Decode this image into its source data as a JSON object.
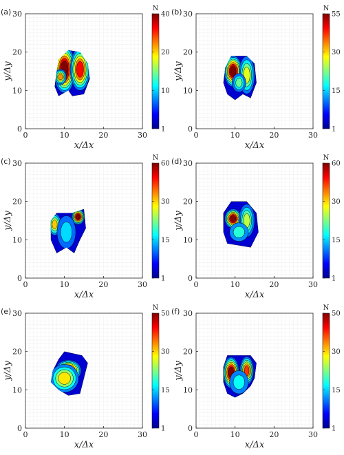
{
  "chart_data": [
    {
      "type": "heatmap",
      "panel_label": "(a)",
      "xlabel": "x/Δx",
      "ylabel": "y/Δy",
      "xlim": [
        0,
        30
      ],
      "ylim": [
        0,
        30
      ],
      "xticks": [
        "0",
        "10",
        "20",
        "30"
      ],
      "yticks": [
        "0",
        "10",
        "20",
        "30"
      ],
      "colorbar": {
        "label": "N",
        "ticks": [
          "1",
          "10",
          "20",
          "40"
        ],
        "tick_values": [
          1,
          10,
          20,
          40
        ],
        "max": 40
      },
      "region": [
        [
          11,
          20.5
        ],
        [
          14,
          20
        ],
        [
          16,
          17
        ],
        [
          16.5,
          13
        ],
        [
          15,
          9
        ],
        [
          12,
          8.5
        ],
        [
          11,
          10
        ],
        [
          8.5,
          8.5
        ],
        [
          7.5,
          11
        ],
        [
          8,
          15
        ],
        [
          8.5,
          18
        ]
      ],
      "peaks": [
        {
          "x": 10,
          "y": 15.5,
          "value": 40,
          "rx": 1.8,
          "ry": 4.5
        },
        {
          "x": 14,
          "y": 15.5,
          "value": 34,
          "rx": 1.6,
          "ry": 4.0
        },
        {
          "x": 9,
          "y": 13.5,
          "value": 28,
          "rx": 0.8,
          "ry": 1.2
        }
      ]
    },
    {
      "type": "heatmap",
      "panel_label": "(b)",
      "xlabel": "x/Δx",
      "ylabel": "y/Δy",
      "xlim": [
        0,
        30
      ],
      "ylim": [
        0,
        30
      ],
      "xticks": [
        "0",
        "10",
        "20",
        "30"
      ],
      "yticks": [
        "0",
        "10",
        "20",
        "30"
      ],
      "colorbar": {
        "label": "N",
        "ticks": [
          "1",
          "15",
          "30",
          "55"
        ],
        "tick_values": [
          1,
          15,
          30,
          55
        ],
        "max": 55
      },
      "region": [
        [
          9,
          19
        ],
        [
          13,
          19
        ],
        [
          15,
          17
        ],
        [
          15.5,
          12
        ],
        [
          14,
          8
        ],
        [
          12,
          9
        ],
        [
          10,
          7.5
        ],
        [
          8,
          9
        ],
        [
          7,
          12
        ],
        [
          7.5,
          16
        ]
      ],
      "peaks": [
        {
          "x": 9.5,
          "y": 15,
          "value": 55,
          "rx": 1.4,
          "ry": 2.8
        },
        {
          "x": 13,
          "y": 14,
          "value": 30,
          "rx": 1.2,
          "ry": 3.5
        },
        {
          "x": 11,
          "y": 12,
          "value": 22,
          "rx": 1.0,
          "ry": 1.5
        }
      ]
    },
    {
      "type": "heatmap",
      "panel_label": "(c)",
      "xlabel": "x/Δx",
      "ylabel": "y/Δy",
      "xlim": [
        0,
        30
      ],
      "ylim": [
        0,
        30
      ],
      "xticks": [
        "0",
        "10",
        "20",
        "30"
      ],
      "yticks": [
        "0",
        "10",
        "20",
        "30"
      ],
      "colorbar": {
        "label": "N",
        "ticks": [
          "1",
          "15",
          "30",
          "60"
        ],
        "tick_values": [
          1,
          15,
          30,
          60
        ],
        "max": 60
      },
      "region": [
        [
          8,
          17
        ],
        [
          12,
          17
        ],
        [
          15,
          18
        ],
        [
          15.5,
          13
        ],
        [
          14,
          10
        ],
        [
          12.5,
          6.5
        ],
        [
          10.5,
          8
        ],
        [
          8,
          6.5
        ],
        [
          6.5,
          10
        ],
        [
          6.5,
          15
        ]
      ],
      "peaks": [
        {
          "x": 7.5,
          "y": 14,
          "value": 38,
          "rx": 0.9,
          "ry": 1.8
        },
        {
          "x": 13.5,
          "y": 16,
          "value": 60,
          "rx": 0.9,
          "ry": 1.2
        },
        {
          "x": 10.5,
          "y": 12,
          "value": 15,
          "rx": 1.5,
          "ry": 3.0
        }
      ]
    },
    {
      "type": "heatmap",
      "panel_label": "(d)",
      "xlabel": "x/Δx",
      "ylabel": "y/Δy",
      "xlim": [
        0,
        30
      ],
      "ylim": [
        0,
        30
      ],
      "xticks": [
        "0",
        "10",
        "20",
        "30"
      ],
      "yticks": [
        "0",
        "10",
        "20",
        "30"
      ],
      "colorbar": {
        "label": "N",
        "ticks": [
          "1",
          "15",
          "30",
          "60"
        ],
        "tick_values": [
          1,
          15,
          30,
          60
        ],
        "max": 60
      },
      "region": [
        [
          9,
          20
        ],
        [
          13,
          20
        ],
        [
          15.5,
          17
        ],
        [
          16,
          12
        ],
        [
          14,
          8
        ],
        [
          11,
          8.5
        ],
        [
          8,
          9
        ],
        [
          7,
          12
        ],
        [
          7,
          17
        ]
      ],
      "peaks": [
        {
          "x": 9.5,
          "y": 15.5,
          "value": 60,
          "rx": 1.3,
          "ry": 1.6
        },
        {
          "x": 13,
          "y": 15,
          "value": 30,
          "rx": 1.2,
          "ry": 3.0
        },
        {
          "x": 11,
          "y": 12,
          "value": 20,
          "rx": 1.5,
          "ry": 1.5
        }
      ]
    },
    {
      "type": "heatmap",
      "panel_label": "(e)",
      "xlabel": "x/Δx",
      "ylabel": "y/Δy",
      "xlim": [
        0,
        30
      ],
      "ylim": [
        0,
        30
      ],
      "xticks": [
        "0",
        "10",
        "20",
        "30"
      ],
      "yticks": [
        "0",
        "10",
        "20",
        "30"
      ],
      "colorbar": {
        "label": "N",
        "ticks": [
          "1",
          "15",
          "30",
          "50"
        ],
        "tick_values": [
          1,
          15,
          30,
          50
        ],
        "max": 50
      },
      "region": [
        [
          10,
          20
        ],
        [
          14.5,
          19
        ],
        [
          16,
          17
        ],
        [
          15,
          13
        ],
        [
          14,
          9
        ],
        [
          11,
          8.5
        ],
        [
          8.5,
          10
        ],
        [
          6.5,
          12
        ],
        [
          7,
          15
        ],
        [
          8.5,
          18
        ]
      ],
      "peaks": [
        {
          "x": 11,
          "y": 15,
          "value": 50,
          "rx": 2.2,
          "ry": 1.8
        },
        {
          "x": 10,
          "y": 13,
          "value": 30,
          "rx": 2.5,
          "ry": 2.5
        }
      ]
    },
    {
      "type": "heatmap",
      "panel_label": "(f)",
      "xlabel": "x/Δx",
      "ylabel": "y/Δy",
      "xlim": [
        0,
        30
      ],
      "ylim": [
        0,
        30
      ],
      "xticks": [
        "0",
        "10",
        "20",
        "30"
      ],
      "yticks": [
        "0",
        "10",
        "20",
        "30"
      ],
      "colorbar": {
        "label": "N",
        "ticks": [
          "1",
          "15",
          "30",
          "50"
        ],
        "tick_values": [
          1,
          15,
          30,
          50
        ],
        "max": 50
      },
      "region": [
        [
          8,
          19
        ],
        [
          14,
          19
        ],
        [
          15.5,
          17
        ],
        [
          15,
          13
        ],
        [
          14,
          11
        ],
        [
          12,
          9
        ],
        [
          10,
          8
        ],
        [
          8,
          9
        ],
        [
          7,
          12
        ],
        [
          7,
          16
        ]
      ],
      "peaks": [
        {
          "x": 9,
          "y": 14.5,
          "value": 50,
          "rx": 1.2,
          "ry": 2.8
        },
        {
          "x": 13,
          "y": 15,
          "value": 40,
          "rx": 1.0,
          "ry": 2.5
        },
        {
          "x": 11,
          "y": 12,
          "value": 15,
          "rx": 1.5,
          "ry": 2.0
        }
      ]
    }
  ]
}
